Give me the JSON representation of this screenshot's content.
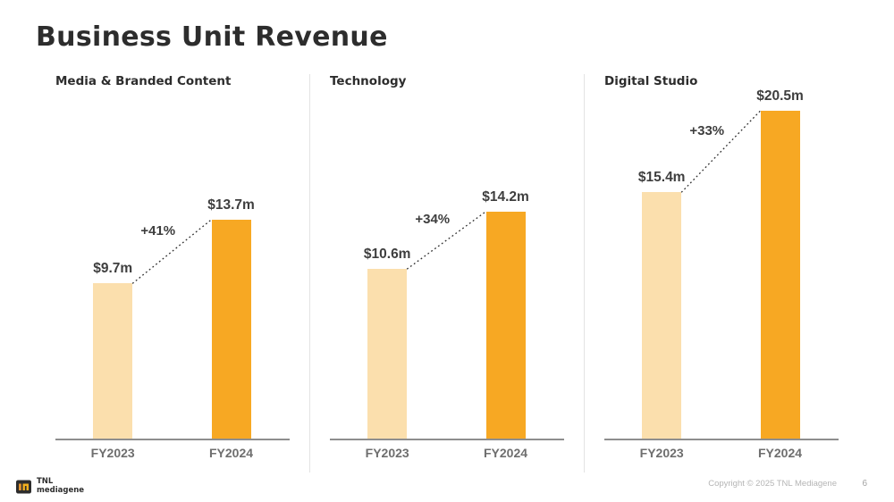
{
  "slide": {
    "title": "Business Unit Revenue",
    "footer": {
      "logo_line1": "TNL",
      "logo_line2": "mediagene",
      "copyright": "Copyright © 2025 TNL Mediagene",
      "page_number": "6"
    }
  },
  "colors": {
    "bar_fy2023": "#FBDFAD",
    "bar_fy2024": "#F7A823",
    "title_text": "#2D2D2D",
    "value_label_text": "#3E3E3E",
    "axis_label_text": "#6E6E6E",
    "baseline": "#8E8E8E",
    "divider": "#E3E3E3",
    "connector_line": "#2E2E2E",
    "footer_text": "#B5B5B5",
    "logo_orange": "#E5952F",
    "logo_yellow": "#F2B01E"
  },
  "chart_data": {
    "type": "bar",
    "title": "Business Unit Revenue",
    "unit": "USD millions",
    "categories": [
      "FY2023",
      "FY2024"
    ],
    "ylim": [
      0,
      21.5
    ],
    "grid": false,
    "legend": false,
    "shared_scale": true,
    "panels": [
      {
        "title": "Media & Branded Content",
        "values": [
          9.7,
          13.7
        ],
        "value_labels": [
          "$9.7m",
          "$13.7m"
        ],
        "growth": "+41%"
      },
      {
        "title": "Technology",
        "values": [
          10.6,
          14.2
        ],
        "value_labels": [
          "$10.6m",
          "$14.2m"
        ],
        "growth": "+34%"
      },
      {
        "title": "Digital Studio",
        "values": [
          15.4,
          20.5
        ],
        "value_labels": [
          "$15.4m",
          "$20.5m"
        ],
        "growth": "+33%"
      }
    ]
  }
}
